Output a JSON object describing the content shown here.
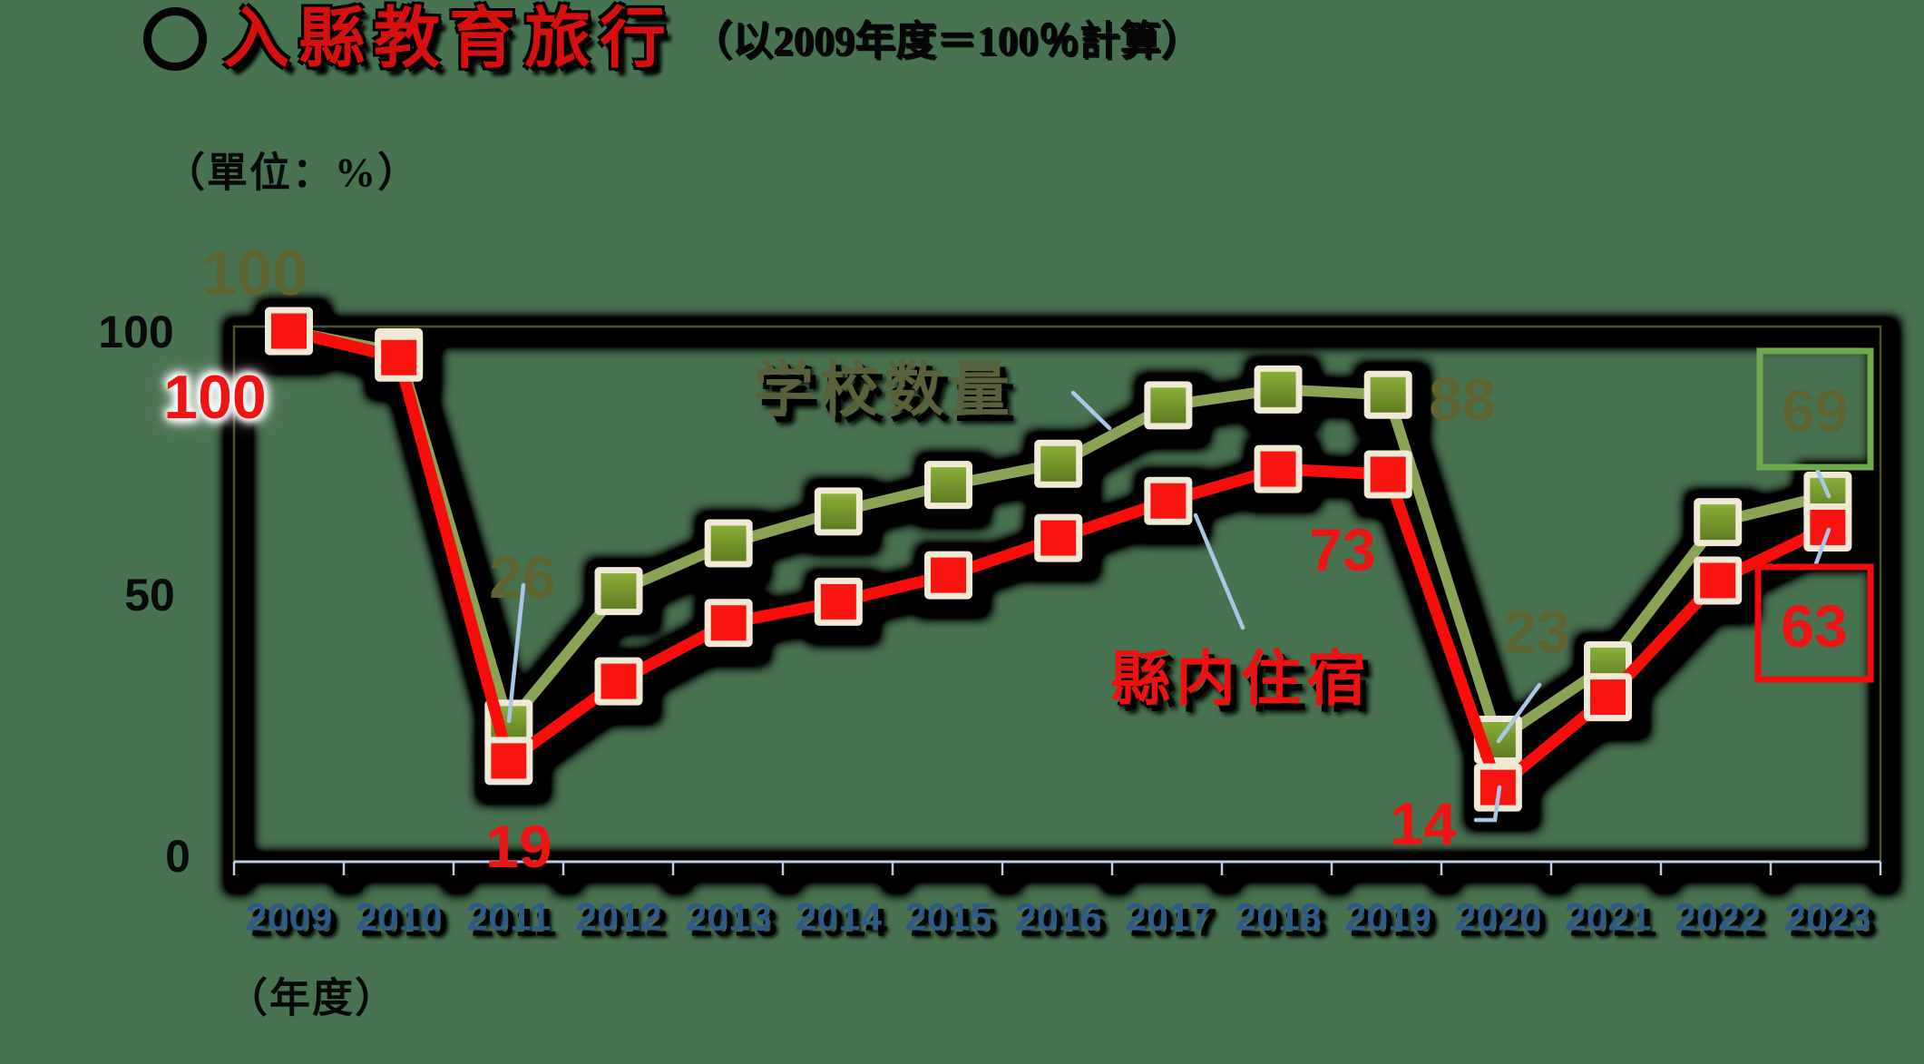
{
  "title": {
    "circle": "〇",
    "main": "入縣教育旅行",
    "note": "（以2009年度＝100％計算）"
  },
  "unit_label": "（單位：%）",
  "x_axis_unit_label": "（年度）",
  "y_axis": {
    "t100": "100",
    "t50": "50",
    "t0": "0"
  },
  "series_labels": {
    "school": "学校数量",
    "lodging": "縣内住宿"
  },
  "point_labels": {
    "school_2009": "100",
    "lodging_2009": "100",
    "school_2011": "26",
    "lodging_2011": "19",
    "school_2019": "88",
    "lodging_2019": "73",
    "school_2020": "23",
    "lodging_2020": "14",
    "school_2023": "69",
    "lodging_2023": "63"
  },
  "colors": {
    "background": "#487350",
    "school_line": "#8ba355",
    "school_marker_top": "#8db33a",
    "school_marker_bottom": "#5a771f",
    "lodging_line": "#f90d0b",
    "lodging_marker": "#fa1410",
    "marker_border": "#efe9d6",
    "plot_border": "#4f532b",
    "axis_line": "#b9cde4",
    "leader_line": "#a8c6e8",
    "school_label_text": "#5e652f",
    "lodging_label_text": "#ee1414",
    "year_label_text": "#2d5a87",
    "green_callout_box": "#6caa4a",
    "red_callout_box": "#f20d0d",
    "title_red": "#d60f0f"
  },
  "chart_data": {
    "type": "line",
    "title": "入縣教育旅行（以2009年度＝100％計算）",
    "unit": "%",
    "categories": [
      "2009",
      "2010",
      "2011",
      "2012",
      "2013",
      "2014",
      "2015",
      "2016",
      "2017",
      "2018",
      "2019",
      "2020",
      "2021",
      "2022",
      "2023"
    ],
    "series": [
      {
        "name": "学校数量",
        "color": "#8ba355",
        "values": [
          100,
          96,
          26,
          51,
          60,
          66,
          71,
          75,
          86,
          89,
          88,
          23,
          37,
          64,
          69
        ]
      },
      {
        "name": "縣内住宿",
        "color": "#f90d0b",
        "values": [
          100,
          95,
          19,
          34,
          45,
          49,
          54,
          61,
          68,
          74,
          73,
          14,
          31,
          53,
          63
        ]
      }
    ],
    "ylim": [
      0,
      100
    ],
    "y_ticks": [
      0,
      50,
      100
    ],
    "grid": false,
    "legend_position": "inline-annotations",
    "annotated_points": {
      "学校数量": {
        "2009": 100,
        "2011": 26,
        "2019": 88,
        "2020": 23,
        "2023": 69
      },
      "縣内住宿": {
        "2009": 100,
        "2011": 19,
        "2019": 73,
        "2020": 14,
        "2023": 63
      }
    }
  }
}
